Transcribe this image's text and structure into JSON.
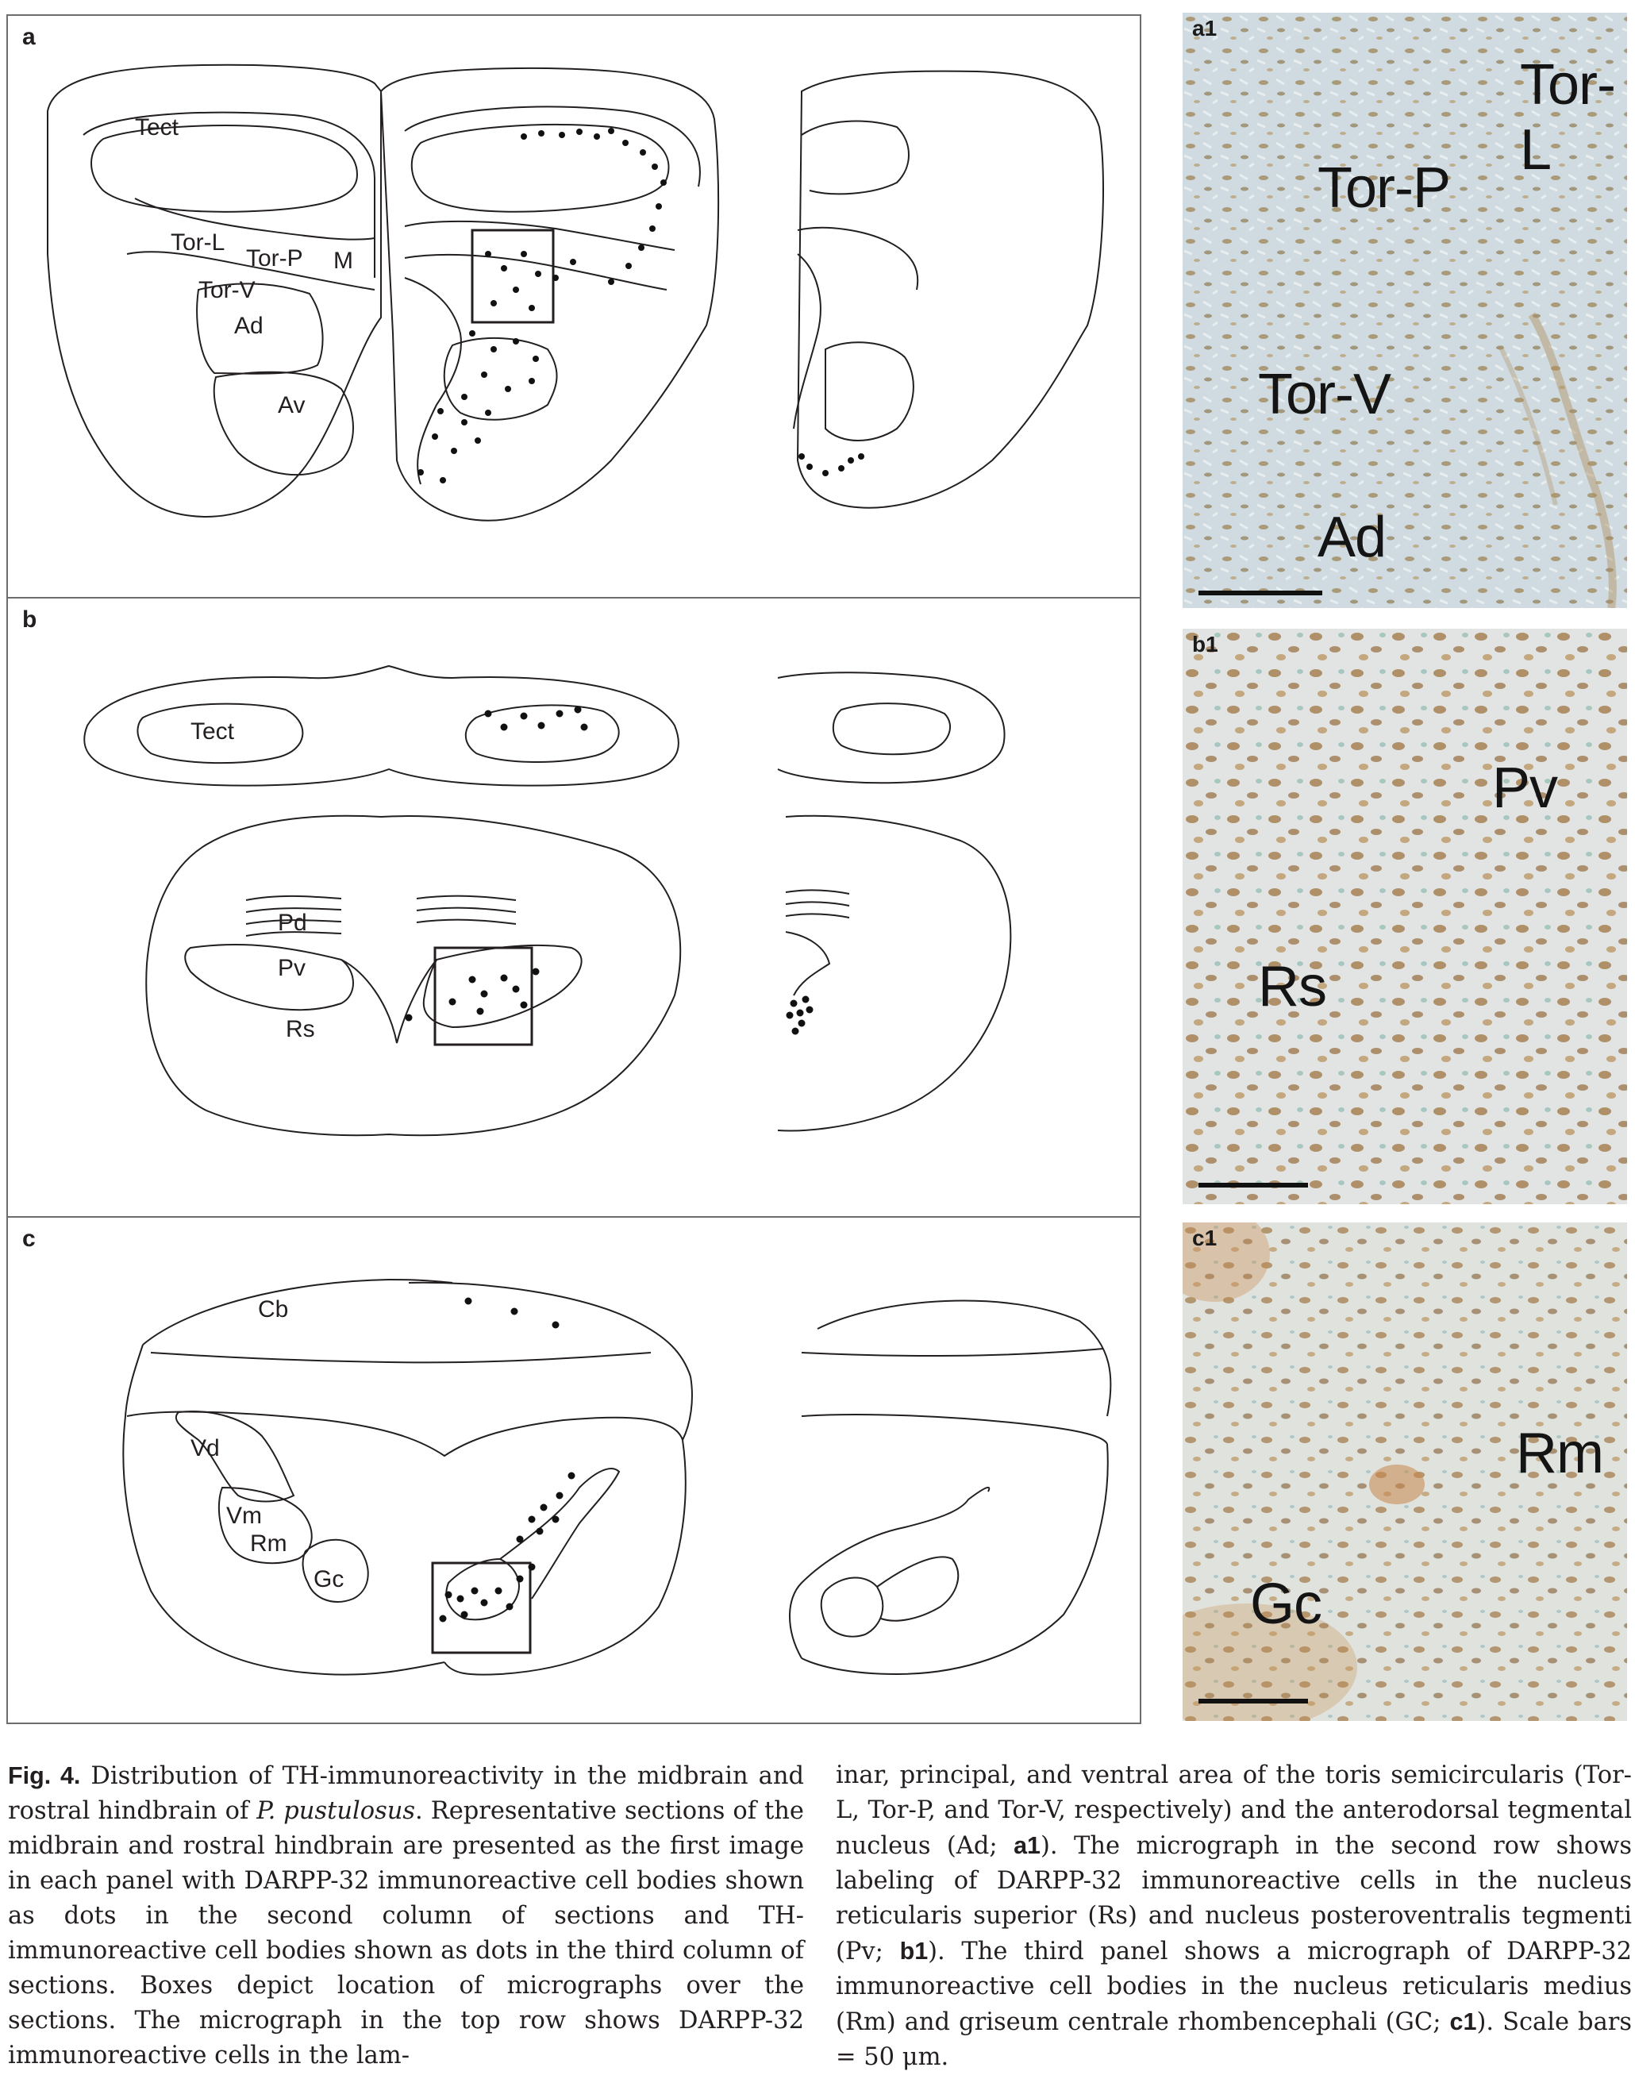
{
  "panels": {
    "a": {
      "letter": "a",
      "labels": {
        "tect": "Tect",
        "torl": "Tor-L",
        "torp": "Tor-P",
        "torv": "Tor-V",
        "m": "M",
        "ad": "Ad",
        "av": "Av"
      }
    },
    "b": {
      "letter": "b",
      "labels": {
        "tect": "Tect",
        "pd": "Pd",
        "pv": "Pv",
        "rs": "Rs"
      }
    },
    "c": {
      "letter": "c",
      "labels": {
        "cb": "Cb",
        "vd": "Vd",
        "vm": "Vm",
        "rm": "Rm",
        "gc": "Gc"
      }
    }
  },
  "micrographs": {
    "a1": {
      "letter": "a1",
      "labels": [
        "Tor-L",
        "Tor-P",
        "Tor-V",
        "Ad"
      ]
    },
    "b1": {
      "letter": "b1",
      "labels": [
        "Pv",
        "Rs"
      ]
    },
    "c1": {
      "letter": "c1",
      "labels": [
        "Rm",
        "Gc"
      ]
    }
  },
  "caption": {
    "fig_label": "Fig. 4.",
    "col1_a": " Distribution of TH-immunoreactivity in the midbrain and rostral hindbrain of ",
    "species": "P. pustulosus",
    "col1_b": ". Representative sections of the midbrain and rostral hindbrain are presented as the first image in each panel with DARPP-32 immunoreactive cell bodies shown as dots in the second column of sections and TH-immunoreactive cell bodies shown as dots in the third column of sections. Boxes depict location of micrographs over the sections. The micrograph in the top row shows DARPP-32 immunoreactive cells in the lam-",
    "col2_a": "inar, principal, and ventral area of the toris semicircularis (Tor-L, Tor-P, and Tor-V, respectively) and the anterodorsal tegmental nucleus (Ad; ",
    "ref_a1": "a1",
    "col2_b": "). The micrograph in the second row shows labeling of DARPP-32 immunoreactive cells in the nucleus reticularis superior (Rs) and nucleus posteroventralis tegmenti (Pv; ",
    "ref_b1": "b1",
    "col2_c": "). The third panel shows a micrograph of DARPP-32 immunoreactive cell bodies in the nucleus reticularis medius (Rm) and griseum centrale rhombencephali (GC; ",
    "ref_c1": "c1",
    "col2_d": "). Scale bars = 50 μm."
  }
}
